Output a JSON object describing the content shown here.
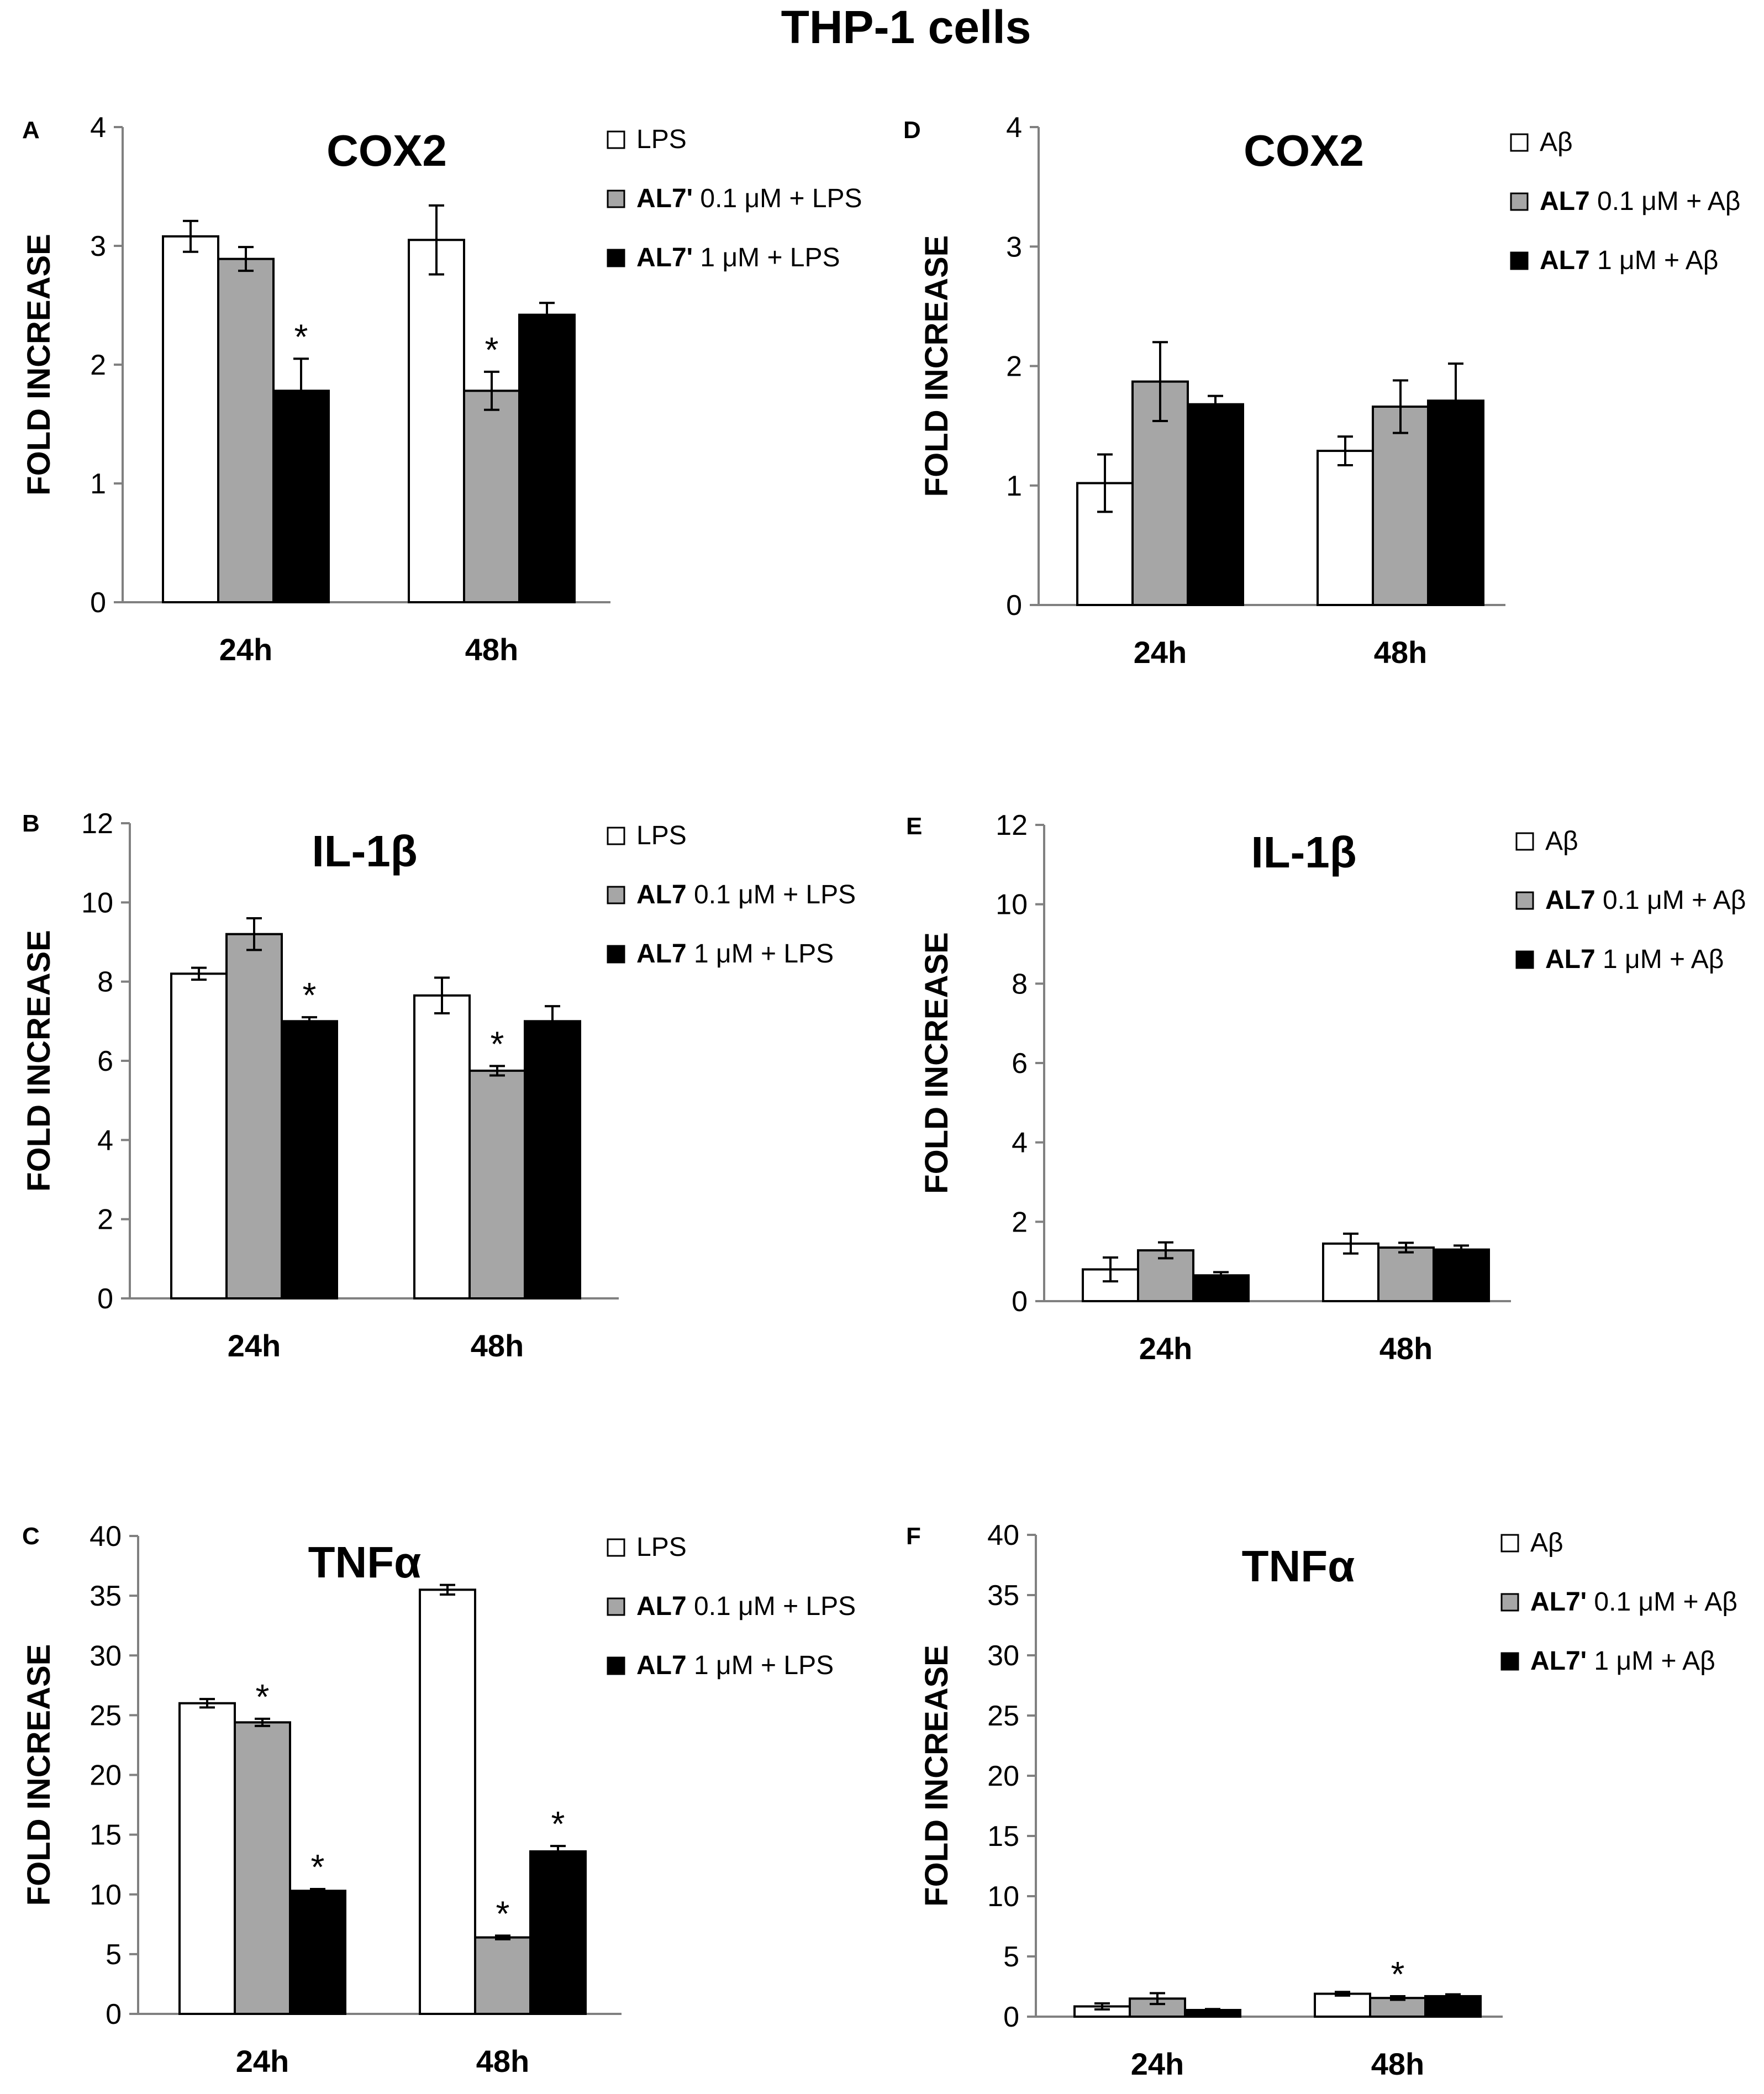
{
  "figure_title": "THP-1 cells",
  "colors": {
    "white": "#ffffff",
    "gray": "#a6a6a6",
    "black": "#000000",
    "outline": "#000000"
  },
  "chart_data": [
    {
      "panel": "A",
      "title": "COX2",
      "type": "bar",
      "ylabel": "FOLD INCREASE",
      "xlabel": "",
      "categories": [
        "24h",
        "48h"
      ],
      "ylim": [
        0,
        4
      ],
      "yticks": [
        "0",
        "1",
        "2",
        "3",
        "4"
      ],
      "series": [
        {
          "legend_label": "LPS",
          "legend_bold": "",
          "legend_rest": "LPS",
          "color": "#ffffff",
          "values": [
            3.08,
            3.05
          ],
          "errors": [
            0.13,
            0.29
          ],
          "stars": [
            "",
            ""
          ]
        },
        {
          "legend_label": "AL7' 0.1 μM + LPS",
          "legend_bold": "AL7'",
          "legend_rest": " 0.1 μM + LPS",
          "color": "#a6a6a6",
          "values": [
            2.89,
            1.78
          ],
          "errors": [
            0.1,
            0.16
          ],
          "stars": [
            "",
            "*"
          ]
        },
        {
          "legend_label": "AL7' 1 μM + LPS",
          "legend_bold": "AL7'",
          "legend_rest": " 1 μM + LPS",
          "color": "#000000",
          "values": [
            1.78,
            2.42
          ],
          "errors": [
            0.27,
            0.1
          ],
          "stars": [
            "*",
            ""
          ]
        }
      ]
    },
    {
      "panel": "B",
      "title": "IL-1β",
      "type": "bar",
      "ylabel": "FOLD INCREASE",
      "xlabel": "",
      "categories": [
        "24h",
        "48h"
      ],
      "ylim": [
        0,
        12
      ],
      "yticks": [
        "0",
        "2",
        "4",
        "6",
        "8",
        "10",
        "12"
      ],
      "series": [
        {
          "legend_label": "LPS",
          "legend_bold": "",
          "legend_rest": "LPS",
          "color": "#ffffff",
          "values": [
            8.2,
            7.65
          ],
          "errors": [
            0.15,
            0.45
          ],
          "stars": [
            "",
            ""
          ]
        },
        {
          "legend_label": "AL7 0.1 μM + LPS",
          "legend_bold": "AL7",
          "legend_rest": " 0.1 μM + LPS",
          "color": "#a6a6a6",
          "values": [
            9.2,
            5.75
          ],
          "errors": [
            0.4,
            0.12
          ],
          "stars": [
            "",
            "*"
          ]
        },
        {
          "legend_label": "AL7 1 μM + LPS",
          "legend_bold": "AL7",
          "legend_rest": " 1 μM + LPS",
          "color": "#000000",
          "values": [
            7.0,
            7.0
          ],
          "errors": [
            0.1,
            0.38
          ],
          "stars": [
            "*",
            ""
          ]
        }
      ]
    },
    {
      "panel": "C",
      "title": "TNFα",
      "type": "bar",
      "ylabel": "FOLD INCREASE",
      "xlabel": "",
      "categories": [
        "24h",
        "48h"
      ],
      "ylim": [
        0,
        40
      ],
      "yticks": [
        "0",
        "5",
        "10",
        "15",
        "20",
        "25",
        "30",
        "35",
        "40"
      ],
      "series": [
        {
          "legend_label": "LPS",
          "legend_bold": "",
          "legend_rest": "LPS",
          "color": "#ffffff",
          "values": [
            26.0,
            35.5
          ],
          "errors": [
            0.35,
            0.4
          ],
          "stars": [
            "",
            ""
          ]
        },
        {
          "legend_label": "AL7 0.1 μM + LPS",
          "legend_bold": "AL7",
          "legend_rest": " 0.1 μM + LPS",
          "color": "#a6a6a6",
          "values": [
            24.4,
            6.4
          ],
          "errors": [
            0.3,
            0.15
          ],
          "stars": [
            "*",
            "*"
          ]
        },
        {
          "legend_label": "AL7 1 μM + LPS",
          "legend_bold": "AL7",
          "legend_rest": " 1 μM + LPS",
          "color": "#000000",
          "values": [
            10.3,
            13.6
          ],
          "errors": [
            0.15,
            0.45
          ],
          "stars": [
            "*",
            "*"
          ]
        }
      ]
    },
    {
      "panel": "D",
      "title": "COX2",
      "type": "bar",
      "ylabel": "FOLD INCREASE",
      "xlabel": "",
      "categories": [
        "24h",
        "48h"
      ],
      "ylim": [
        0,
        4
      ],
      "yticks": [
        "0",
        "1",
        "2",
        "3",
        "4"
      ],
      "series": [
        {
          "legend_label": "Aβ",
          "legend_bold": "",
          "legend_rest": "Aβ",
          "color": "#ffffff",
          "values": [
            1.02,
            1.29
          ],
          "errors": [
            0.24,
            0.12
          ],
          "stars": [
            "",
            ""
          ]
        },
        {
          "legend_label": "AL7 0.1 μM + Aβ",
          "legend_bold": "AL7",
          "legend_rest": " 0.1 μM + Aβ",
          "color": "#a6a6a6",
          "values": [
            1.87,
            1.66
          ],
          "errors": [
            0.33,
            0.22
          ],
          "stars": [
            "",
            ""
          ]
        },
        {
          "legend_label": "AL7 1 μM + Aβ",
          "legend_bold": "AL7",
          "legend_rest": " 1 μM + Aβ",
          "color": "#000000",
          "values": [
            1.68,
            1.71
          ],
          "errors": [
            0.07,
            0.31
          ],
          "stars": [
            "",
            ""
          ]
        }
      ]
    },
    {
      "panel": "E",
      "title": "IL-1β",
      "type": "bar",
      "ylabel": "FOLD INCREASE",
      "xlabel": "",
      "categories": [
        "24h",
        "48h"
      ],
      "ylim": [
        0,
        12
      ],
      "yticks": [
        "0",
        "2",
        "4",
        "6",
        "8",
        "10",
        "12"
      ],
      "series": [
        {
          "legend_label": "Aβ",
          "legend_bold": "",
          "legend_rest": "Aβ",
          "color": "#ffffff",
          "values": [
            0.8,
            1.45
          ],
          "errors": [
            0.3,
            0.25
          ],
          "stars": [
            "",
            ""
          ]
        },
        {
          "legend_label": "AL7 0.1 μM + Aβ",
          "legend_bold": "AL7",
          "legend_rest": " 0.1 μM + Aβ",
          "color": "#a6a6a6",
          "values": [
            1.28,
            1.35
          ],
          "errors": [
            0.2,
            0.12
          ],
          "stars": [
            "",
            ""
          ]
        },
        {
          "legend_label": "AL7 1 μM + Aβ",
          "legend_bold": "AL7",
          "legend_rest": " 1 μM + Aβ",
          "color": "#000000",
          "values": [
            0.65,
            1.3
          ],
          "errors": [
            0.08,
            0.1
          ],
          "stars": [
            "",
            ""
          ]
        }
      ]
    },
    {
      "panel": "F",
      "title": "TNFα",
      "type": "bar",
      "ylabel": "FOLD INCREASE",
      "xlabel": "",
      "categories": [
        "24h",
        "48h"
      ],
      "ylim": [
        0,
        40
      ],
      "yticks": [
        "0",
        "5",
        "10",
        "15",
        "20",
        "25",
        "30",
        "35",
        "40"
      ],
      "series": [
        {
          "legend_label": "Aβ",
          "legend_bold": "",
          "legend_rest": "Aβ",
          "color": "#ffffff",
          "values": [
            0.85,
            1.9
          ],
          "errors": [
            0.25,
            0.15
          ],
          "stars": [
            "",
            ""
          ]
        },
        {
          "legend_label": "AL7' 0.1 μM + Aβ",
          "legend_bold": "AL7'",
          "legend_rest": " 0.1 μM + Aβ",
          "color": "#a6a6a6",
          "values": [
            1.5,
            1.55
          ],
          "errors": [
            0.45,
            0.15
          ],
          "stars": [
            "",
            "*"
          ]
        },
        {
          "legend_label": "AL7' 1 μM + Aβ",
          "legend_bold": "AL7'",
          "legend_rest": " 1 μM + Aβ",
          "color": "#000000",
          "values": [
            0.55,
            1.7
          ],
          "errors": [
            0.08,
            0.15
          ],
          "stars": [
            "",
            ""
          ]
        }
      ]
    }
  ]
}
